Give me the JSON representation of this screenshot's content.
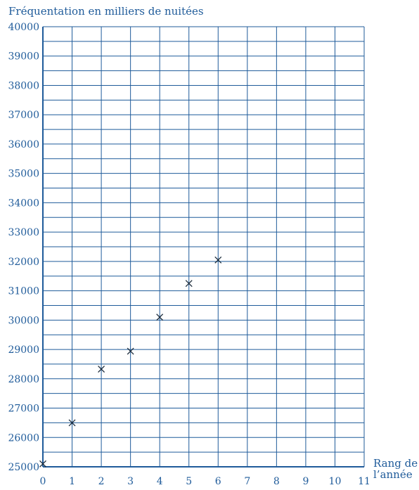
{
  "chart_data": {
    "type": "scatter",
    "ylabel": "Fréquentation en milliers de nuitées",
    "xlabel_lines": [
      "Rang de",
      "l’année"
    ],
    "x": [
      0,
      1,
      2,
      3,
      4,
      5,
      6
    ],
    "y": [
      25100,
      26500,
      28330,
      28940,
      30100,
      31250,
      32050
    ],
    "xlim": [
      0,
      11
    ],
    "ylim": [
      25000,
      40000
    ],
    "x_ticks": [
      "0",
      "1",
      "2",
      "3",
      "4",
      "5",
      "6",
      "7",
      "8",
      "9",
      "10",
      "11"
    ],
    "y_ticks": [
      "25000",
      "26000",
      "27000",
      "28000",
      "29000",
      "30000",
      "31000",
      "32000",
      "33000",
      "34000",
      "35000",
      "36000",
      "37000",
      "38000",
      "39000",
      "40000"
    ],
    "grid": true,
    "marker": "cross",
    "color": "#1f5b9a"
  }
}
